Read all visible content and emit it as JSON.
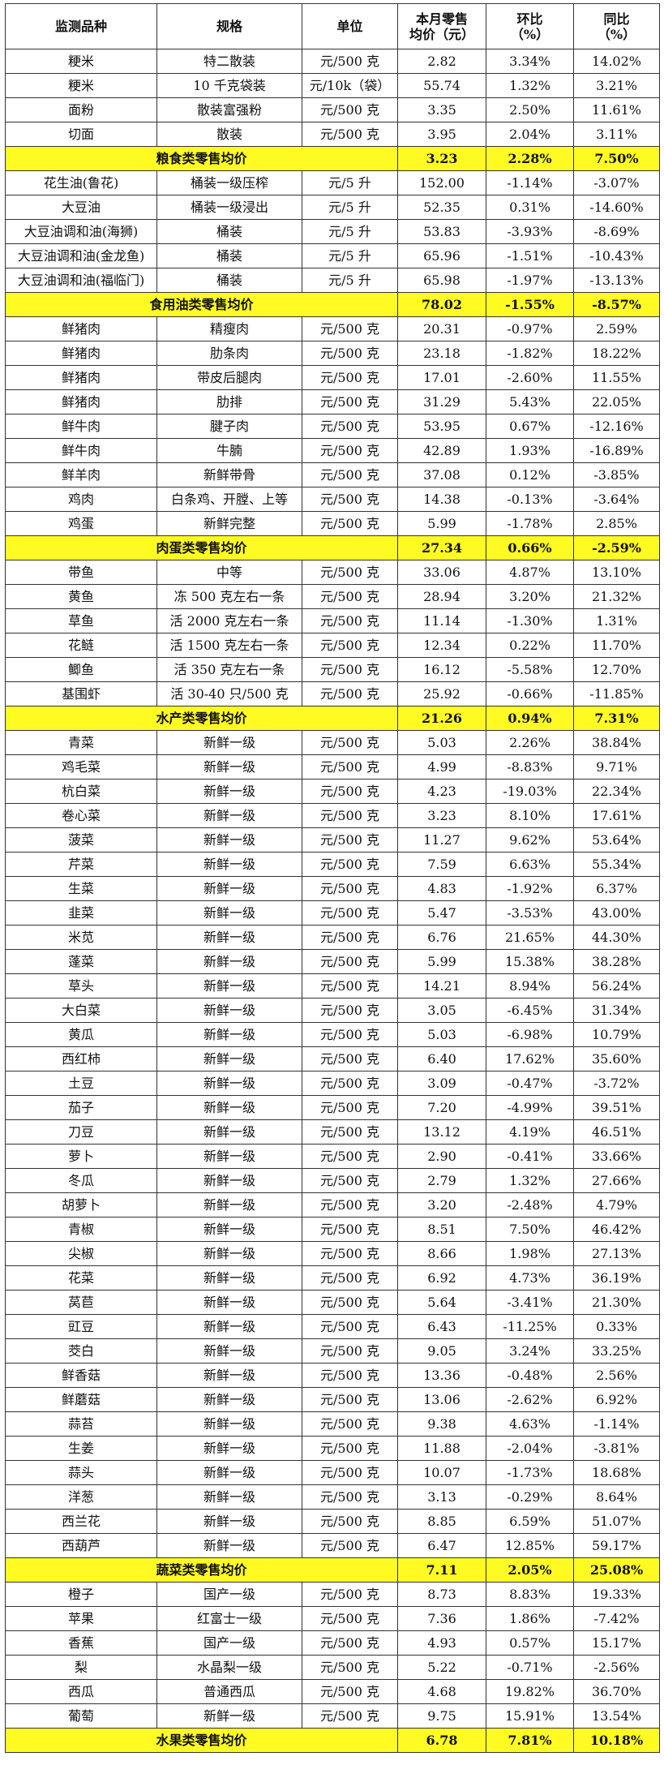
{
  "headers": {
    "h1": "监测品种",
    "h2": "规格",
    "h3": "单位",
    "h4a": "本月零售",
    "h4b": "均价（元）",
    "h5a": "环比",
    "h5b": "（%）",
    "h6a": "同比",
    "h6b": "（%）"
  },
  "rows": [
    {
      "n": "粳米",
      "s": "特二散装",
      "u": "元/500 克",
      "p": "2.82",
      "m": "3.34%",
      "y": "14.02%"
    },
    {
      "n": "粳米",
      "s": "10 千克袋装",
      "u": "元/10k（袋）",
      "p": "55.74",
      "m": "1.32%",
      "y": "3.21%"
    },
    {
      "n": "面粉",
      "s": "散装富强粉",
      "u": "元/500 克",
      "p": "3.35",
      "m": "2.50%",
      "y": "11.61%"
    },
    {
      "n": "切面",
      "s": "散装",
      "u": "元/500 克",
      "p": "3.95",
      "m": "2.04%",
      "y": "3.11%"
    },
    {
      "sum": true,
      "n": "粮食类零售均价",
      "p": "3.23",
      "m": "2.28%",
      "y": "7.50%"
    },
    {
      "n": "花生油(鲁花)",
      "s": "桶装一级压榨",
      "u": "元/5 升",
      "p": "152.00",
      "m": "-1.14%",
      "y": "-3.07%"
    },
    {
      "n": "大豆油",
      "s": "桶装一级浸出",
      "u": "元/5 升",
      "p": "52.35",
      "m": "0.31%",
      "y": "-14.60%"
    },
    {
      "n": "大豆油调和油(海狮)",
      "s": "桶装",
      "u": "元/5 升",
      "p": "53.83",
      "m": "-3.93%",
      "y": "-8.69%"
    },
    {
      "n": "大豆油调和油(金龙鱼)",
      "s": "桶装",
      "u": "元/5 升",
      "p": "65.96",
      "m": "-1.51%",
      "y": "-10.43%"
    },
    {
      "n": "大豆油调和油(福临门)",
      "s": "桶装",
      "u": "元/5 升",
      "p": "65.98",
      "m": "-1.97%",
      "y": "-13.13%"
    },
    {
      "sum": true,
      "n": "食用油类零售均价",
      "p": "78.02",
      "m": "-1.55%",
      "y": "-8.57%"
    },
    {
      "n": "鲜猪肉",
      "s": "精瘦肉",
      "u": "元/500 克",
      "p": "20.31",
      "m": "-0.97%",
      "y": "2.59%"
    },
    {
      "n": "鲜猪肉",
      "s": "肋条肉",
      "u": "元/500 克",
      "p": "23.18",
      "m": "-1.82%",
      "y": "18.22%"
    },
    {
      "n": "鲜猪肉",
      "s": "带皮后腿肉",
      "u": "元/500 克",
      "p": "17.01",
      "m": "-2.60%",
      "y": "11.55%"
    },
    {
      "n": "鲜猪肉",
      "s": "肋排",
      "u": "元/500 克",
      "p": "31.29",
      "m": "5.43%",
      "y": "22.05%"
    },
    {
      "n": "鲜牛肉",
      "s": "腱子肉",
      "u": "元/500 克",
      "p": "53.95",
      "m": "0.67%",
      "y": "-12.16%"
    },
    {
      "n": "鲜牛肉",
      "s": "牛腩",
      "u": "元/500 克",
      "p": "42.89",
      "m": "1.93%",
      "y": "-16.89%"
    },
    {
      "n": "鲜羊肉",
      "s": "新鲜带骨",
      "u": "元/500 克",
      "p": "37.08",
      "m": "0.12%",
      "y": "-3.85%"
    },
    {
      "n": "鸡肉",
      "s": "白条鸡、开膛、上等",
      "u": "元/500 克",
      "p": "14.38",
      "m": "-0.13%",
      "y": "-3.64%"
    },
    {
      "n": "鸡蛋",
      "s": "新鲜完整",
      "u": "元/500 克",
      "p": "5.99",
      "m": "-1.78%",
      "y": "2.85%"
    },
    {
      "sum": true,
      "n": "肉蛋类零售均价",
      "p": "27.34",
      "m": "0.66%",
      "y": "-2.59%"
    },
    {
      "n": "带鱼",
      "s": "中等",
      "u": "元/500 克",
      "p": "33.06",
      "m": "4.87%",
      "y": "13.10%"
    },
    {
      "n": "黄鱼",
      "s": "冻 500 克左右一条",
      "u": "元/500 克",
      "p": "28.94",
      "m": "3.20%",
      "y": "21.32%"
    },
    {
      "n": "草鱼",
      "s": "活 2000 克左右一条",
      "u": "元/500 克",
      "p": "11.14",
      "m": "-1.30%",
      "y": "1.31%"
    },
    {
      "n": "花鲢",
      "s": "活 1500 克左右一条",
      "u": "元/500 克",
      "p": "12.34",
      "m": "0.22%",
      "y": "11.70%"
    },
    {
      "n": "鲫鱼",
      "s": "活 350 克左右一条",
      "u": "元/500 克",
      "p": "16.12",
      "m": "-5.58%",
      "y": "12.70%"
    },
    {
      "n": "基围虾",
      "s": "活 30-40 只/500 克",
      "u": "元/500 克",
      "p": "25.92",
      "m": "-0.66%",
      "y": "-11.85%"
    },
    {
      "sum": true,
      "n": "水产类零售均价",
      "p": "21.26",
      "m": "0.94%",
      "y": "7.31%"
    },
    {
      "n": "青菜",
      "s": "新鲜一级",
      "u": "元/500 克",
      "p": "5.03",
      "m": "2.26%",
      "y": "38.84%"
    },
    {
      "n": "鸡毛菜",
      "s": "新鲜一级",
      "u": "元/500 克",
      "p": "4.99",
      "m": "-8.83%",
      "y": "9.71%"
    },
    {
      "n": "杭白菜",
      "s": "新鲜一级",
      "u": "元/500 克",
      "p": "4.23",
      "m": "-19.03%",
      "y": "22.34%"
    },
    {
      "n": "卷心菜",
      "s": "新鲜一级",
      "u": "元/500 克",
      "p": "3.23",
      "m": "8.10%",
      "y": "17.61%"
    },
    {
      "n": "菠菜",
      "s": "新鲜一级",
      "u": "元/500 克",
      "p": "11.27",
      "m": "9.62%",
      "y": "53.64%"
    },
    {
      "n": "芹菜",
      "s": "新鲜一级",
      "u": "元/500 克",
      "p": "7.59",
      "m": "6.63%",
      "y": "55.34%"
    },
    {
      "n": "生菜",
      "s": "新鲜一级",
      "u": "元/500 克",
      "p": "4.83",
      "m": "-1.92%",
      "y": "6.37%"
    },
    {
      "n": "韭菜",
      "s": "新鲜一级",
      "u": "元/500 克",
      "p": "5.47",
      "m": "-3.53%",
      "y": "43.00%"
    },
    {
      "n": "米苋",
      "s": "新鲜一级",
      "u": "元/500 克",
      "p": "6.76",
      "m": "21.65%",
      "y": "44.30%"
    },
    {
      "n": "蓬菜",
      "s": "新鲜一级",
      "u": "元/500 克",
      "p": "5.99",
      "m": "15.38%",
      "y": "38.28%"
    },
    {
      "n": "草头",
      "s": "新鲜一级",
      "u": "元/500 克",
      "p": "14.21",
      "m": "8.94%",
      "y": "56.24%"
    },
    {
      "n": "大白菜",
      "s": "新鲜一级",
      "u": "元/500 克",
      "p": "3.05",
      "m": "-6.45%",
      "y": "31.34%"
    },
    {
      "n": "黄瓜",
      "s": "新鲜一级",
      "u": "元/500 克",
      "p": "5.03",
      "m": "-6.98%",
      "y": "10.79%"
    },
    {
      "n": "西红柿",
      "s": "新鲜一级",
      "u": "元/500 克",
      "p": "6.40",
      "m": "17.62%",
      "y": "35.60%"
    },
    {
      "n": "土豆",
      "s": "新鲜一级",
      "u": "元/500 克",
      "p": "3.09",
      "m": "-0.47%",
      "y": "-3.72%"
    },
    {
      "n": "茄子",
      "s": "新鲜一级",
      "u": "元/500 克",
      "p": "7.20",
      "m": "-4.99%",
      "y": "39.51%"
    },
    {
      "n": "刀豆",
      "s": "新鲜一级",
      "u": "元/500 克",
      "p": "13.12",
      "m": "4.19%",
      "y": "46.51%"
    },
    {
      "n": "萝卜",
      "s": "新鲜一级",
      "u": "元/500 克",
      "p": "2.90",
      "m": "-0.41%",
      "y": "33.66%"
    },
    {
      "n": "冬瓜",
      "s": "新鲜一级",
      "u": "元/500 克",
      "p": "2.79",
      "m": "1.32%",
      "y": "27.66%"
    },
    {
      "n": "胡萝卜",
      "s": "新鲜一级",
      "u": "元/500 克",
      "p": "3.20",
      "m": "-2.48%",
      "y": "4.79%"
    },
    {
      "n": "青椒",
      "s": "新鲜一级",
      "u": "元/500 克",
      "p": "8.51",
      "m": "7.50%",
      "y": "46.42%"
    },
    {
      "n": "尖椒",
      "s": "新鲜一级",
      "u": "元/500 克",
      "p": "8.66",
      "m": "1.98%",
      "y": "27.13%"
    },
    {
      "n": "花菜",
      "s": "新鲜一级",
      "u": "元/500 克",
      "p": "6.92",
      "m": "4.73%",
      "y": "36.19%"
    },
    {
      "n": "莴苣",
      "s": "新鲜一级",
      "u": "元/500 克",
      "p": "5.64",
      "m": "-3.41%",
      "y": "21.30%"
    },
    {
      "n": "豇豆",
      "s": "新鲜一级",
      "u": "元/500 克",
      "p": "6.43",
      "m": "-11.25%",
      "y": "0.33%"
    },
    {
      "n": "茭白",
      "s": "新鲜一级",
      "u": "元/500 克",
      "p": "9.05",
      "m": "3.24%",
      "y": "33.25%"
    },
    {
      "n": "鲜香菇",
      "s": "新鲜一级",
      "u": "元/500 克",
      "p": "13.36",
      "m": "-0.48%",
      "y": "2.56%"
    },
    {
      "n": "鲜蘑菇",
      "s": "新鲜一级",
      "u": "元/500 克",
      "p": "13.06",
      "m": "-2.62%",
      "y": "6.92%"
    },
    {
      "n": "蒜苔",
      "s": "新鲜一级",
      "u": "元/500 克",
      "p": "9.38",
      "m": "4.63%",
      "y": "-1.14%"
    },
    {
      "n": "生姜",
      "s": "新鲜一级",
      "u": "元/500 克",
      "p": "11.88",
      "m": "-2.04%",
      "y": "-3.81%"
    },
    {
      "n": "蒜头",
      "s": "新鲜一级",
      "u": "元/500 克",
      "p": "10.07",
      "m": "-1.73%",
      "y": "18.68%"
    },
    {
      "n": "洋葱",
      "s": "新鲜一级",
      "u": "元/500 克",
      "p": "3.13",
      "m": "-0.29%",
      "y": "8.64%"
    },
    {
      "n": "西兰花",
      "s": "新鲜一级",
      "u": "元/500 克",
      "p": "8.85",
      "m": "6.59%",
      "y": "51.07%"
    },
    {
      "n": "西葫芦",
      "s": "新鲜一级",
      "u": "元/500 克",
      "p": "6.47",
      "m": "12.85%",
      "y": "59.17%"
    },
    {
      "sum": true,
      "n": "蔬菜类零售均价",
      "p": "7.11",
      "m": "2.05%",
      "y": "25.08%"
    },
    {
      "n": "橙子",
      "s": "国产一级",
      "u": "元/500 克",
      "p": "8.73",
      "m": "8.83%",
      "y": "19.33%"
    },
    {
      "n": "苹果",
      "s": "红富士一级",
      "u": "元/500 克",
      "p": "7.36",
      "m": "1.86%",
      "y": "-7.42%"
    },
    {
      "n": "香蕉",
      "s": "国产一级",
      "u": "元/500 克",
      "p": "4.93",
      "m": "0.57%",
      "y": "15.17%"
    },
    {
      "n": "梨",
      "s": "水晶梨一级",
      "u": "元/500 克",
      "p": "5.22",
      "m": "-0.71%",
      "y": "-2.56%"
    },
    {
      "n": "西瓜",
      "s": "普通西瓜",
      "u": "元/500 克",
      "p": "4.68",
      "m": "19.82%",
      "y": "36.70%"
    },
    {
      "n": "葡萄",
      "s": "新鲜一级",
      "u": "元/500 克",
      "p": "9.75",
      "m": "15.91%",
      "y": "13.54%"
    },
    {
      "sum": true,
      "n": "水果类零售均价",
      "p": "6.78",
      "m": "7.81%",
      "y": "10.18%"
    }
  ],
  "colors": {
    "summary_highlight": "#fffb22",
    "border": "#333333"
  }
}
